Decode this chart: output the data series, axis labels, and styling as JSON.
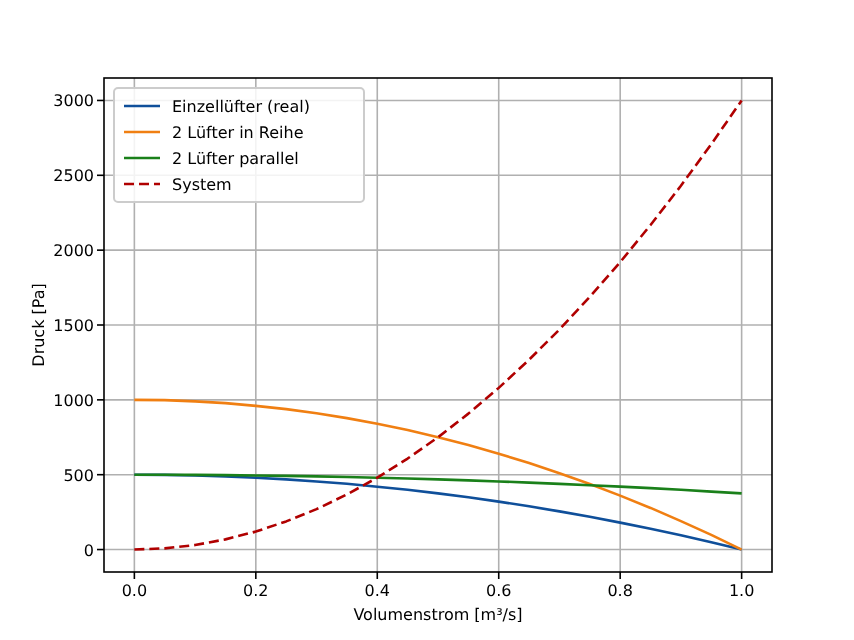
{
  "chart_data": {
    "type": "line",
    "xlabel": "Volumenstrom [m³/s]",
    "ylabel": "Druck [Pa]",
    "x": [
      0,
      0.05,
      0.1,
      0.15,
      0.2,
      0.25,
      0.3,
      0.35,
      0.4,
      0.45,
      0.5,
      0.55,
      0.6,
      0.65,
      0.7,
      0.75,
      0.8,
      0.85,
      0.9,
      0.95,
      1
    ],
    "series": [
      {
        "name": "Einzellüfter (real)",
        "color": "#0f4f9a",
        "values": [
          500,
          499,
          495,
          489,
          480,
          469,
          455,
          439,
          420,
          399,
          375,
          349,
          320,
          289,
          255,
          219,
          180,
          139,
          95,
          49,
          0
        ]
      },
      {
        "name": "2 Lüfter in Reihe",
        "color": "#f07f12",
        "values": [
          1000,
          998,
          990,
          978,
          960,
          938,
          910,
          878,
          840,
          798,
          750,
          698,
          640,
          578,
          510,
          438,
          360,
          278,
          190,
          98,
          0
        ]
      },
      {
        "name": "2 Lüfter parallel",
        "color": "#1a801a",
        "values": [
          500,
          500,
          499,
          497,
          495,
          492,
          489,
          485,
          480,
          475,
          469,
          462,
          455,
          447,
          439,
          430,
          420,
          410,
          399,
          387,
          375
        ]
      },
      {
        "name": "System",
        "color": "#b00000",
        "line_style": "dashed",
        "values": [
          0,
          8,
          30,
          68,
          120,
          188,
          270,
          368,
          480,
          608,
          750,
          908,
          1080,
          1268,
          1470,
          1688,
          1920,
          2168,
          2430,
          2708,
          3000
        ]
      }
    ],
    "xlim": [
      -0.05,
      1.05
    ],
    "xticks": [
      {
        "value": 0,
        "label": "0.0"
      },
      {
        "value": 0.2,
        "label": "0.2"
      },
      {
        "value": 0.4,
        "label": "0.4"
      },
      {
        "value": 0.6,
        "label": "0.6"
      },
      {
        "value": 0.8,
        "label": "0.8"
      },
      {
        "value": 1,
        "label": "1.0"
      }
    ],
    "ylim": [
      -150,
      3150
    ],
    "yticks": [
      0,
      500,
      1000,
      1500,
      2000,
      2500,
      3000
    ],
    "grid": true,
    "legend": "top left"
  }
}
